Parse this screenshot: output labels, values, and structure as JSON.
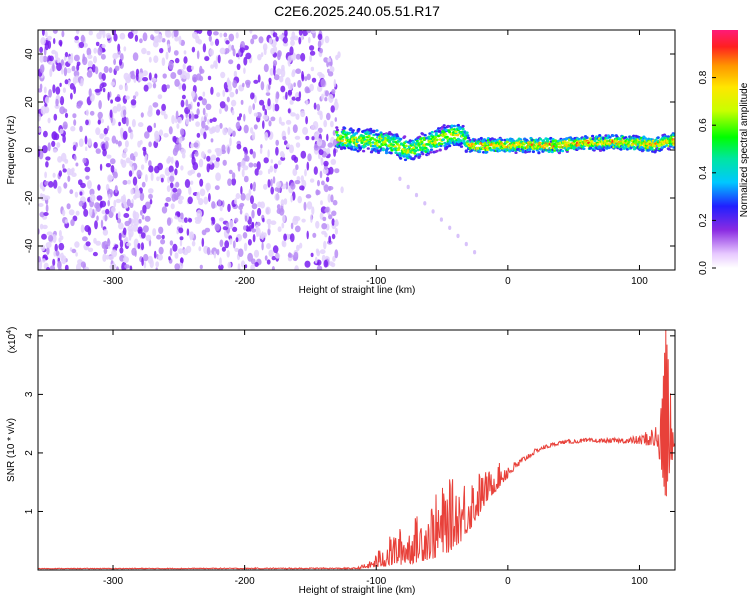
{
  "title": "C2E6.2025.240.05.51.R17",
  "chart_data": [
    {
      "type": "heatmap",
      "xlabel": "Height of straight line (km)",
      "ylabel": "Frequency (Hz)",
      "xlim": [
        -357,
        127
      ],
      "ylim": [
        -50,
        50
      ],
      "xticks": [
        -300,
        -200,
        -100,
        0,
        100
      ],
      "yticks": [
        -40,
        -20,
        0,
        20,
        40
      ],
      "noise_region_x": [
        -357,
        -130
      ],
      "signal_trace": {
        "x": [
          -130,
          -115,
          -100,
          -85,
          -75,
          -60,
          -45,
          -35,
          -28,
          -20,
          0,
          20,
          40,
          60,
          80,
          100,
          110,
          127
        ],
        "y": [
          5,
          4,
          4,
          2,
          0,
          3,
          6,
          6,
          2,
          2,
          2,
          2,
          2,
          3,
          3,
          3,
          2,
          4
        ]
      },
      "colorbar": {
        "label": "Normalized spectral amplitude",
        "range": [
          0,
          1
        ],
        "ticks": [
          0.0,
          0.2,
          0.4,
          0.6,
          0.8
        ]
      }
    },
    {
      "type": "line",
      "xlabel": "Height of straight line (km)",
      "ylabel": "SNR (10 * v/v)",
      "yscale_label": "(x10",
      "yscale_exp": "4",
      "yscale_close": ")",
      "xlim": [
        -357,
        127
      ],
      "ylim": [
        0,
        4.1
      ],
      "xticks": [
        -300,
        -200,
        -100,
        0,
        100
      ],
      "yticks": [
        1,
        2,
        3,
        4
      ],
      "color": "#e8413a",
      "envelope": {
        "x": [
          -357,
          -115,
          -105,
          -95,
          -85,
          -75,
          -65,
          -55,
          -45,
          -35,
          -25,
          -15,
          -5,
          5,
          15,
          25,
          40,
          60,
          80,
          100,
          112,
          117,
          120,
          127
        ],
        "low": [
          0.02,
          0.02,
          0.03,
          0.05,
          0.08,
          0.1,
          0.15,
          0.2,
          0.3,
          0.5,
          0.8,
          1.2,
          1.45,
          1.7,
          1.9,
          2.05,
          2.15,
          2.18,
          2.18,
          2.15,
          2.1,
          1.7,
          1.2,
          2.12
        ],
        "high": [
          0.03,
          0.04,
          0.15,
          0.45,
          0.7,
          0.8,
          1.05,
          1.3,
          1.55,
          1.6,
          1.7,
          1.7,
          1.85,
          1.85,
          2.0,
          2.12,
          2.22,
          2.25,
          2.25,
          2.3,
          2.5,
          2.8,
          4.1,
          2.16
        ]
      }
    }
  ]
}
